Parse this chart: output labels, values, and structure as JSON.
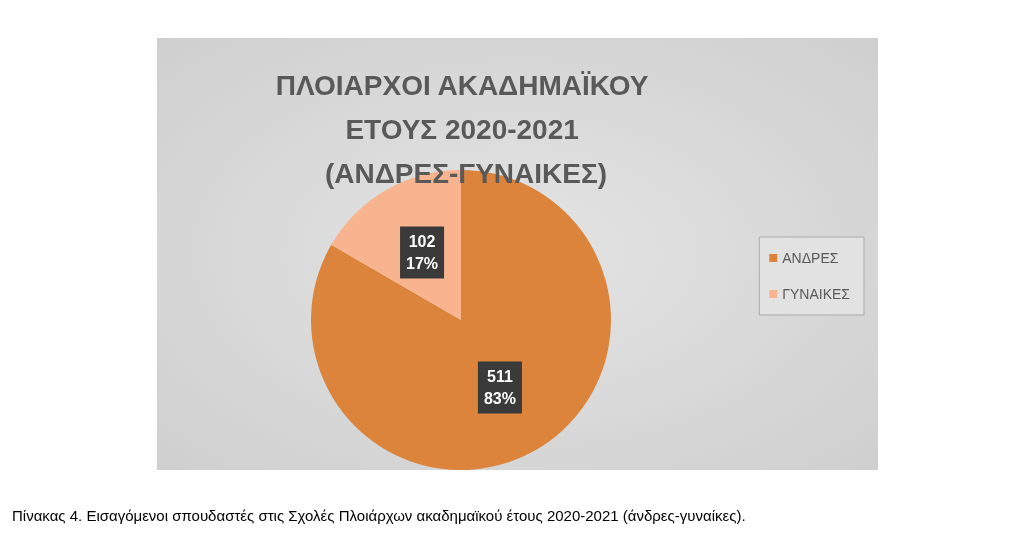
{
  "chart_data": {
    "type": "pie",
    "title": "ΠΛΟΙΑΡΧΟΙ ΑΚΑΔΗΜΑΪΚΟΥ ΕΤΟΥΣ 2020-2021 (ΑΝΔΡΕΣ-ΓΥΝΑΙΚΕΣ)",
    "categories": [
      "ΑΝΔΡΕΣ",
      "ΓΥΝΑΙΚΕΣ"
    ],
    "values": [
      511,
      102
    ],
    "colors": [
      "#dc843c",
      "#f8b48f"
    ],
    "value_labels": [
      "511\n83%",
      "102\n17%"
    ],
    "legend": "right",
    "annotations": [
      "Πίνακας 4. Εισαγόμενοι σπουδαστές στις Σχολές Πλοιάρχων ακαδημαϊκού έτους 2020-2021 (άνδρες-γυναίκες)."
    ]
  }
}
